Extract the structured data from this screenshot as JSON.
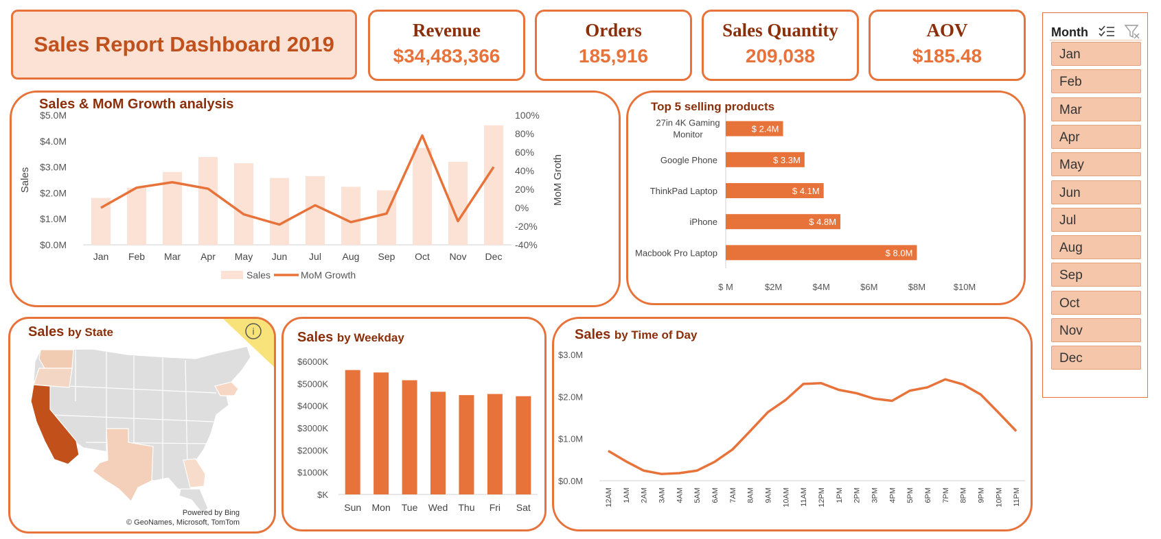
{
  "header": {
    "title": "Sales Report Dashboard 2019"
  },
  "kpis": [
    {
      "label": "Revenue",
      "value": "$34,483,366"
    },
    {
      "label": "Orders",
      "value": "185,916"
    },
    {
      "label": "Sales Quantity",
      "value": "209,038"
    },
    {
      "label": "AOV",
      "value": "$185.48"
    }
  ],
  "colors": {
    "accent": "#e8733a",
    "title": "#8a2f0a",
    "light_bar": "#fbe2d5",
    "slicer_item": "#f5c6aa"
  },
  "slicer": {
    "title": "Month",
    "items": [
      "Jan",
      "Feb",
      "Mar",
      "Apr",
      "May",
      "Jun",
      "Jul",
      "Aug",
      "Sep",
      "Oct",
      "Nov",
      "Dec"
    ],
    "icons": [
      "multi-select-icon",
      "clear-filter-icon"
    ]
  },
  "map": {
    "title_main": "Sales",
    "title_sub": "by State",
    "credit_1": "Powered by Bing",
    "credit_2": "© GeoNames, Microsoft, TomTom",
    "info_icon": "info-icon"
  },
  "chart_data": [
    {
      "id": "mom",
      "type": "bar+line",
      "title": "Sales & MoM Growth analysis",
      "categories": [
        "Jan",
        "Feb",
        "Mar",
        "Apr",
        "May",
        "Jun",
        "Jul",
        "Aug",
        "Sep",
        "Oct",
        "Nov",
        "Dec"
      ],
      "series": [
        {
          "name": "Sales",
          "type": "bar",
          "axis": "left",
          "values": [
            1.81,
            2.2,
            2.81,
            3.39,
            3.15,
            2.58,
            2.65,
            2.24,
            2.1,
            3.74,
            3.2,
            4.61
          ]
        },
        {
          "name": "MoM Growth",
          "type": "line",
          "axis": "right",
          "values": [
            0,
            21.7,
            27.6,
            20.6,
            -7.1,
            -18.1,
            2.7,
            -15.5,
            -6.3,
            78.1,
            -14.4,
            44.1
          ]
        }
      ],
      "ylabel": "Sales",
      "y2label": "MoM Groth",
      "ylim": [
        0,
        5
      ],
      "y2lim": [
        -40,
        100
      ],
      "yticks": [
        "$0.0M",
        "$1.0M",
        "$2.0M",
        "$3.0M",
        "$4.0M",
        "$5.0M"
      ],
      "y2ticks": [
        "-40%",
        "-20%",
        "0%",
        "20%",
        "40%",
        "60%",
        "80%",
        "100%"
      ],
      "legend": "bottom"
    },
    {
      "id": "top5",
      "type": "bar",
      "orientation": "horizontal",
      "title": "Top  5 selling products",
      "categories": [
        "27in 4K Gaming Monitor",
        "Google Phone",
        "ThinkPad Laptop",
        "iPhone",
        "Macbook Pro Laptop"
      ],
      "values": [
        2.4,
        3.3,
        4.1,
        4.8,
        8.0
      ],
      "data_labels": [
        "$ 2.4M",
        "$ 3.3M",
        "$ 4.1M",
        "$ 4.8M",
        "$ 8.0M"
      ],
      "xlim": [
        0,
        10
      ],
      "xticks": [
        "$ M",
        "$2M",
        "$4M",
        "$6M",
        "$8M",
        "$10M"
      ]
    },
    {
      "id": "weekday",
      "type": "bar",
      "title": "Sales",
      "subtitle": "by Weekday",
      "categories": [
        "Sun",
        "Mon",
        "Tue",
        "Wed",
        "Thu",
        "Fri",
        "Sat"
      ],
      "values": [
        5610,
        5500,
        5150,
        4630,
        4480,
        4530,
        4430
      ],
      "ylim": [
        0,
        6000
      ],
      "yticks": [
        "$K",
        "$1000K",
        "$2000K",
        "$3000K",
        "$4000K",
        "$5000K",
        "$6000K"
      ]
    },
    {
      "id": "tod",
      "type": "line",
      "title": "Sales",
      "subtitle": "by Time of Day",
      "categories": [
        "12AM",
        "1AM",
        "2AM",
        "3AM",
        "4AM",
        "5AM",
        "6AM",
        "7AM",
        "8AM",
        "9AM",
        "10AM",
        "11AM",
        "12PM",
        "1PM",
        "2PM",
        "3PM",
        "4PM",
        "5PM",
        "6PM",
        "7PM",
        "8PM",
        "9PM",
        "10PM",
        "11PM"
      ],
      "values": [
        0.71,
        0.46,
        0.24,
        0.16,
        0.18,
        0.24,
        0.45,
        0.74,
        1.18,
        1.63,
        1.92,
        2.3,
        2.32,
        2.16,
        2.08,
        1.95,
        1.9,
        2.14,
        2.22,
        2.41,
        2.29,
        2.05,
        1.62,
        1.18
      ],
      "ylim": [
        0,
        3
      ],
      "yticks": [
        "$0.0M",
        "$1.0M",
        "$2.0M",
        "$3.0M"
      ]
    }
  ]
}
